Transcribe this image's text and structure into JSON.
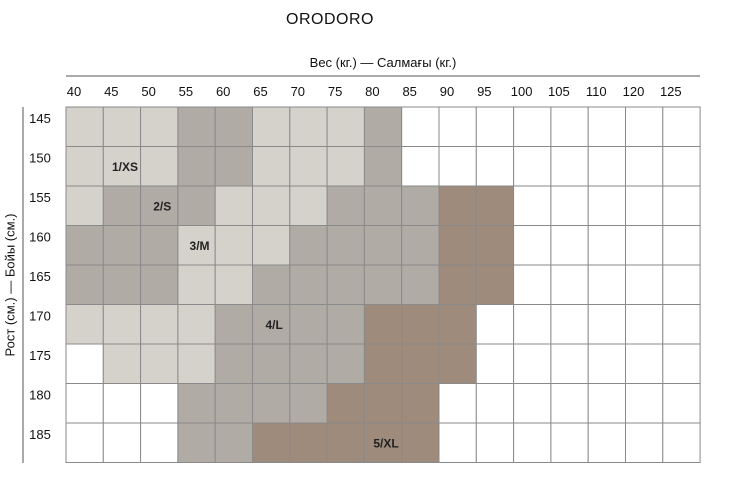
{
  "brand": "ORODORO",
  "chart_data": {
    "type": "heatmap",
    "title": "ORODORO",
    "xlabel": "Вес (кг.) — Салмағы (кг.)",
    "ylabel": "Рост (см.) — Бойы (см.)",
    "x_categories": [
      "40",
      "45",
      "50",
      "55",
      "60",
      "65",
      "70",
      "75",
      "80",
      "85",
      "90",
      "95",
      "100",
      "105",
      "110",
      "120",
      "125"
    ],
    "y_categories": [
      "145",
      "150",
      "155",
      "160",
      "165",
      "170",
      "175",
      "180",
      "185"
    ],
    "legend": [
      {
        "size": 0,
        "name": "",
        "color": "#ffffff"
      },
      {
        "size": 1,
        "name": "1/XS",
        "color": "#d5d2cc"
      },
      {
        "size": 2,
        "name": "2/S",
        "color": "#b0aba5"
      },
      {
        "size": 3,
        "name": "3/M",
        "color": "#d5d2cc"
      },
      {
        "size": 4,
        "name": "4/L",
        "color": "#b0aba5"
      },
      {
        "size": 5,
        "name": "5/XL",
        "color": "#9e8b7b"
      }
    ],
    "grid": [
      [
        1,
        1,
        1,
        2,
        2,
        1,
        1,
        1,
        2,
        0,
        0,
        0,
        0,
        0,
        0,
        0,
        0
      ],
      [
        1,
        1,
        1,
        2,
        2,
        1,
        1,
        1,
        2,
        0,
        0,
        0,
        0,
        0,
        0,
        0,
        0
      ],
      [
        1,
        2,
        2,
        2,
        3,
        3,
        3,
        4,
        4,
        4,
        5,
        5,
        0,
        0,
        0,
        0,
        0
      ],
      [
        2,
        2,
        2,
        3,
        3,
        3,
        4,
        4,
        4,
        4,
        5,
        5,
        0,
        0,
        0,
        0,
        0
      ],
      [
        2,
        2,
        2,
        3,
        3,
        4,
        4,
        4,
        4,
        4,
        5,
        5,
        0,
        0,
        0,
        0,
        0
      ],
      [
        1,
        1,
        1,
        1,
        4,
        4,
        4,
        4,
        5,
        5,
        5,
        0,
        0,
        0,
        0,
        0,
        0
      ],
      [
        0,
        1,
        1,
        1,
        4,
        4,
        4,
        4,
        5,
        5,
        5,
        0,
        0,
        0,
        0,
        0,
        0
      ],
      [
        0,
        0,
        0,
        4,
        4,
        4,
        4,
        5,
        5,
        5,
        0,
        0,
        0,
        0,
        0,
        0,
        0
      ],
      [
        0,
        0,
        0,
        4,
        4,
        5,
        5,
        5,
        5,
        5,
        0,
        0,
        0,
        0,
        0,
        0,
        0
      ]
    ],
    "annotations": [
      {
        "text": "1/XS",
        "x": "45",
        "y": "150"
      },
      {
        "text": "2/S",
        "x": "50",
        "y": "155"
      },
      {
        "text": "3/M",
        "x": "55",
        "y": "160"
      },
      {
        "text": "4/L",
        "x": "65",
        "y": "170"
      },
      {
        "text": "5/XL",
        "x": "80",
        "y": "185"
      }
    ]
  }
}
